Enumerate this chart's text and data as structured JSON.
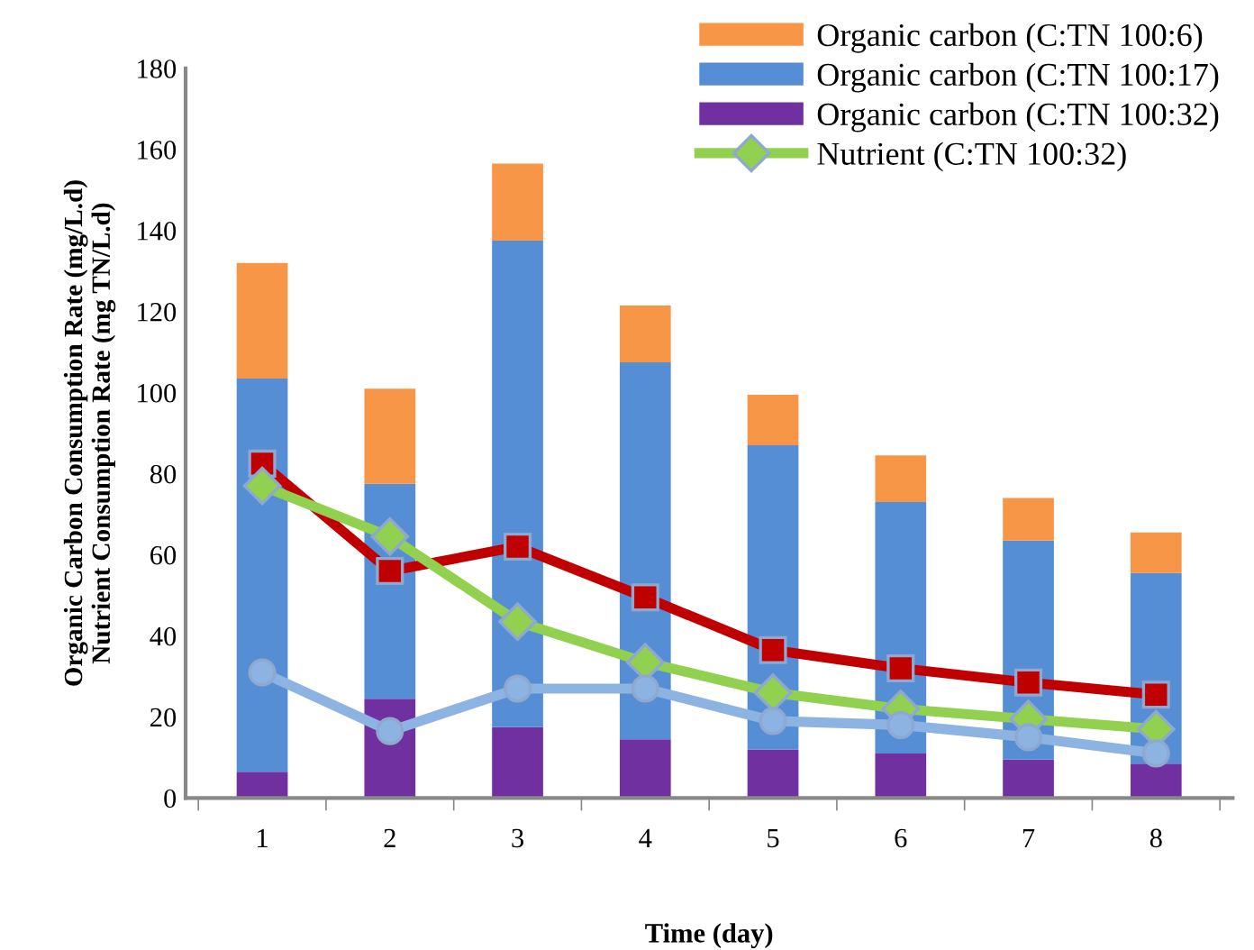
{
  "chart_data": {
    "type": "bar",
    "stacked": true,
    "xlabel": "Time (day)",
    "ylabel": "Organic Carbon Consumption Rate (mg/L.d)\nNutrient Consumption Rate (mg TN/L.d)",
    "categories": [
      "1",
      "2",
      "3",
      "4",
      "5",
      "6",
      "7",
      "8"
    ],
    "series": [
      {
        "name": "Organic carbon (C:TN 100:32)",
        "color": "#7030a0",
        "values": [
          6.5,
          24.5,
          17.5,
          14.5,
          12,
          11,
          9.5,
          8.5
        ]
      },
      {
        "name": "Organic carbon (C:TN 100:17)",
        "color": "#558ed5",
        "values": [
          97,
          53,
          120,
          93,
          75,
          62,
          54,
          47
        ]
      },
      {
        "name": "Organic carbon (C:TN 100:6)",
        "color": "#f79646",
        "values": [
          28.5,
          23.5,
          19,
          14,
          12.5,
          11.5,
          10.5,
          10
        ]
      },
      {
        "type": "line",
        "color": "#c00000",
        "marker": "square",
        "values": [
          82.5,
          56,
          62,
          49.5,
          36.5,
          32,
          28.5,
          25.5
        ]
      },
      {
        "type": "line",
        "name": "Nutrient (C:TN 100:32)",
        "color": "#92d050",
        "marker": "diamond",
        "values": [
          77,
          64.5,
          43.5,
          33.5,
          26,
          22,
          19.5,
          17
        ]
      },
      {
        "type": "line",
        "color": "#8db3e2",
        "marker": "circle",
        "values": [
          31,
          16.5,
          27,
          27,
          19,
          18,
          15,
          11
        ]
      }
    ],
    "ylim": [
      0,
      180
    ],
    "yticks": [
      0,
      20,
      40,
      60,
      80,
      100,
      120,
      140,
      160,
      180
    ],
    "grid": false,
    "legend": "top right"
  }
}
